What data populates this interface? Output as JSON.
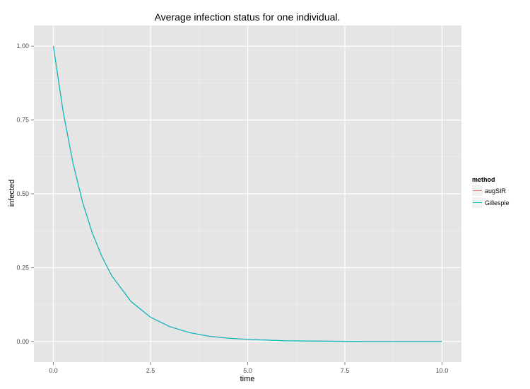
{
  "chart_data": {
    "type": "line",
    "title": "Average infection status for one individual.",
    "xlabel": "time",
    "ylabel": "infected",
    "xlim": [
      -0.5,
      10.5
    ],
    "ylim": [
      -0.07,
      1.07
    ],
    "x_ticks": [
      "0.0",
      "2.5",
      "5.0",
      "7.5",
      "10.0"
    ],
    "y_ticks": [
      "0.00",
      "0.25",
      "0.50",
      "0.75",
      "1.00"
    ],
    "grid": true,
    "legend": {
      "title": "method",
      "position": "right",
      "entries": [
        "augSIR",
        "Gillespie"
      ]
    },
    "series": [
      {
        "name": "augSIR",
        "color": "#F8766D",
        "x": [
          0,
          0.25,
          0.5,
          0.75,
          1.0,
          1.25,
          1.5,
          2.0,
          2.5,
          3.0,
          3.5,
          4.0,
          4.5,
          5.0,
          6.0,
          7.0,
          8.0,
          9.0,
          10.0
        ],
        "y": [
          1.0,
          0.779,
          0.607,
          0.472,
          0.368,
          0.287,
          0.223,
          0.135,
          0.082,
          0.05,
          0.03,
          0.018,
          0.011,
          0.007,
          0.002,
          0.001,
          0.0,
          0.0,
          0.0
        ]
      },
      {
        "name": "Gillespie",
        "color": "#00BFC4",
        "x": [
          0,
          0.25,
          0.5,
          0.75,
          1.0,
          1.25,
          1.5,
          2.0,
          2.5,
          3.0,
          3.5,
          4.0,
          4.5,
          5.0,
          6.0,
          7.0,
          8.0,
          9.0,
          10.0
        ],
        "y": [
          1.0,
          0.779,
          0.607,
          0.472,
          0.368,
          0.287,
          0.223,
          0.135,
          0.082,
          0.05,
          0.03,
          0.018,
          0.011,
          0.007,
          0.002,
          0.001,
          0.0,
          0.0,
          0.0
        ]
      }
    ]
  }
}
